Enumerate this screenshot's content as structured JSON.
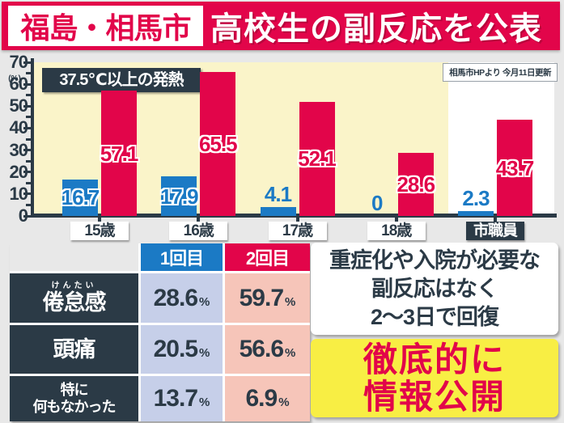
{
  "header": {
    "location": "福島・相馬市",
    "headline": "高校生の副反応を公表"
  },
  "chart_data": {
    "type": "bar",
    "title": "37.5℃以上の発熱",
    "source_note": "相馬市HPより 今月11日更新",
    "y_unit": "(%)",
    "ylim": [
      0,
      70
    ],
    "ytick_step": 10,
    "grid": false,
    "legend_position": "none",
    "categories": [
      "15歳",
      "16歳",
      "17歳",
      "18歳",
      "市職員"
    ],
    "highlight_category_index": 4,
    "series": [
      {
        "name": "1回目",
        "color": "#1b7ac5",
        "values": [
          16.7,
          17.9,
          4.1,
          0,
          2.3
        ]
      },
      {
        "name": "2回目",
        "color": "#e2054a",
        "values": [
          57.1,
          65.5,
          52.1,
          28.6,
          43.7
        ]
      }
    ],
    "plot_bg": "#faf4c9",
    "highlight_bg": "#ffffff"
  },
  "table": {
    "columns": [
      {
        "label": "1回目",
        "color": "#1b7ac5",
        "cell_bg": "#c6cfe9"
      },
      {
        "label": "2回目",
        "color": "#e2054a",
        "cell_bg": "#f6c5b9"
      }
    ],
    "rows": [
      {
        "label": "倦怠感",
        "furigana": "けんたい",
        "values": [
          "28.6",
          "59.7"
        ],
        "unit": "%"
      },
      {
        "label": "頭痛",
        "values": [
          "20.5",
          "56.6"
        ],
        "unit": "%"
      },
      {
        "label": "特に|何もなかった",
        "values": [
          "13.7",
          "6.9"
        ],
        "unit": "%"
      }
    ]
  },
  "info_box": {
    "lines": [
      "重症化や入院が必要な",
      "副反応はなく",
      "2〜3日で回復"
    ]
  },
  "policy_box": {
    "lines": [
      "徹底的に",
      "情報公開"
    ]
  },
  "colors": {
    "accent_red": "#e2054a",
    "accent_blue": "#1b7ac5",
    "navy": "#2b3a46",
    "chart_yellow": "#faf4c9",
    "highlight_yellow": "#f8ee44",
    "cell_blue": "#c6cfe9",
    "cell_pink": "#f6c5b9",
    "page_bg": "#e8e8e8"
  }
}
